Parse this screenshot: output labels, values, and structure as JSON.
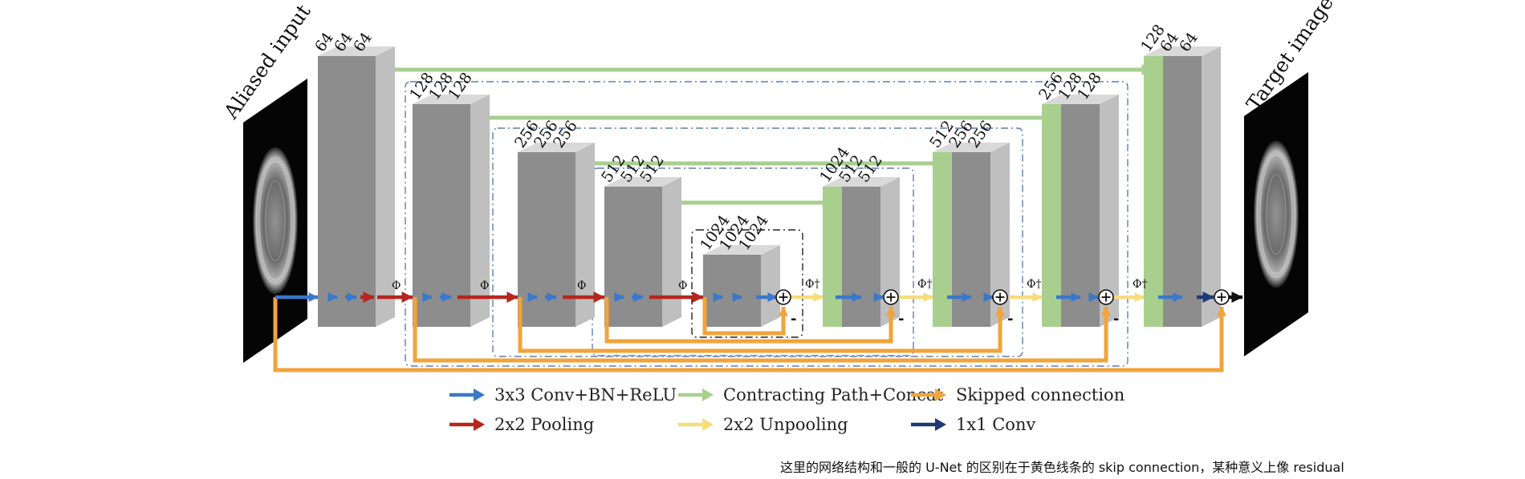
{
  "colors": {
    "conv": "#3a78c9",
    "pool": "#b5261e",
    "concat": "#a9cf8f",
    "unpool": "#f7dc7c",
    "skip": "#f2a33a",
    "conv1x1": "#1f3a73",
    "box_dash": "#5b7fb0",
    "block_front": "#8d8d8d",
    "block_side": "#bfbfbf"
  },
  "inputs": {
    "input_label": "Aliased input",
    "output_label": "Target image"
  },
  "blocks": {
    "enc1": [
      "64",
      "64",
      "64"
    ],
    "enc2": [
      "128",
      "128",
      "128"
    ],
    "enc3": [
      "256",
      "256",
      "256"
    ],
    "enc4": [
      "512",
      "512",
      "512"
    ],
    "bottom": [
      "1024",
      "1024",
      "1024"
    ],
    "dec4": [
      "1024",
      "512",
      "512"
    ],
    "dec3": [
      "512",
      "256",
      "256"
    ],
    "dec2": [
      "256",
      "128",
      "128"
    ],
    "dec1": [
      "128",
      "64",
      "64"
    ]
  },
  "ops": {
    "pool_symbol": "Φ",
    "unpool_symbol": "Φ†",
    "minus": "-"
  },
  "legend": [
    {
      "icon": "conv-arrow-icon",
      "color_key": "conv",
      "label": "3x3 Conv+BN+ReLU"
    },
    {
      "icon": "concat-arrow-icon",
      "color_key": "concat",
      "label": "Contracting Path+Concat"
    },
    {
      "icon": "skip-arrow-icon",
      "color_key": "skip",
      "label": "Skipped connection"
    },
    {
      "icon": "pool-arrow-icon",
      "color_key": "pool",
      "label": "2x2 Pooling"
    },
    {
      "icon": "unpool-arrow-icon",
      "color_key": "unpool",
      "label": "2x2 Unpooling"
    },
    {
      "icon": "conv1x1-arrow-icon",
      "color_key": "conv1x1",
      "label": "1x1 Conv"
    }
  ],
  "caption": "这里的网络结构和一般的 U-Net 的区别在于黄色线条的 skip connection，某种意义上像 residual"
}
